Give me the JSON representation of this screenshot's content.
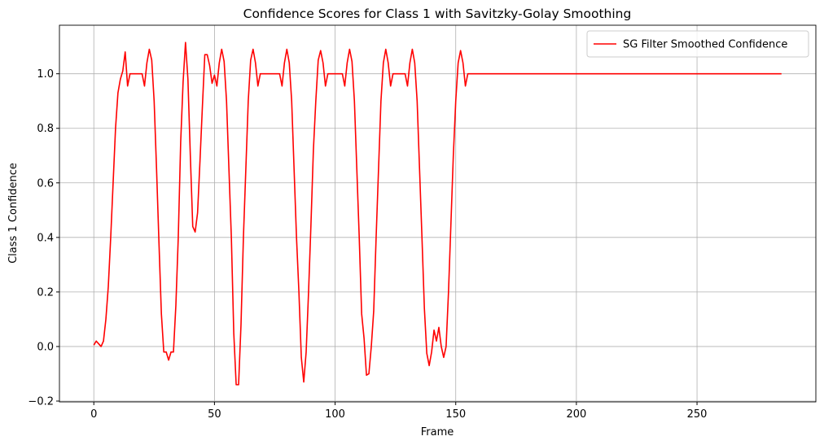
{
  "chart_data": {
    "type": "line",
    "title": "Confidence Scores for Class 1 with Savitzky-Golay Smoothing",
    "xlabel": "Frame",
    "ylabel": "Class 1 Confidence",
    "x": [
      0,
      1,
      2,
      3,
      4,
      5,
      6,
      7,
      8,
      9,
      10,
      11,
      12,
      13,
      14,
      15,
      16,
      17,
      18,
      19,
      20,
      21,
      22,
      23,
      24,
      25,
      26,
      27,
      28,
      29,
      30,
      31,
      32,
      33,
      34,
      35,
      36,
      37,
      38,
      39,
      40,
      41,
      42,
      43,
      44,
      45,
      46,
      47,
      48,
      49,
      50,
      51,
      52,
      53,
      54,
      55,
      56,
      57,
      58,
      59,
      60,
      61,
      62,
      63,
      64,
      65,
      66,
      67,
      68,
      69,
      70,
      71,
      72,
      73,
      74,
      75,
      76,
      77,
      78,
      79,
      80,
      81,
      82,
      83,
      84,
      85,
      86,
      87,
      88,
      89,
      90,
      91,
      92,
      93,
      94,
      95,
      96,
      97,
      98,
      99,
      100,
      101,
      102,
      103,
      104,
      105,
      106,
      107,
      108,
      109,
      110,
      111,
      112,
      113,
      114,
      115,
      116,
      117,
      118,
      119,
      120,
      121,
      122,
      123,
      124,
      125,
      126,
      127,
      128,
      129,
      130,
      131,
      132,
      133,
      134,
      135,
      136,
      137,
      138,
      139,
      140,
      141,
      142,
      143,
      144,
      145,
      146,
      147,
      148,
      149,
      150,
      151,
      152,
      153,
      154,
      155,
      156,
      285
    ],
    "series": [
      {
        "name": "SG Filter Smoothed Confidence",
        "color": "#ff0000",
        "values": [
          0.005,
          0.02,
          0.01,
          0.0,
          0.02,
          0.1,
          0.22,
          0.4,
          0.6,
          0.8,
          0.93,
          0.98,
          1.01,
          1.08,
          0.955,
          1.0,
          1.0,
          1.0,
          1.0,
          1.0,
          1.0,
          0.955,
          1.04,
          1.09,
          1.05,
          0.9,
          0.65,
          0.38,
          0.12,
          -0.02,
          -0.02,
          -0.05,
          -0.02,
          -0.02,
          0.15,
          0.4,
          0.75,
          0.97,
          1.115,
          0.98,
          0.7,
          0.44,
          0.42,
          0.49,
          0.68,
          0.88,
          1.07,
          1.07,
          1.03,
          0.965,
          0.995,
          0.955,
          1.04,
          1.09,
          1.045,
          0.9,
          0.65,
          0.4,
          0.05,
          -0.14,
          -0.14,
          0.08,
          0.4,
          0.65,
          0.9,
          1.05,
          1.09,
          1.04,
          0.955,
          1.0,
          1.0,
          1.0,
          1.0,
          1.0,
          1.0,
          1.0,
          1.0,
          1.0,
          0.955,
          1.04,
          1.09,
          1.04,
          0.9,
          0.65,
          0.4,
          0.2,
          -0.04,
          -0.13,
          -0.02,
          0.2,
          0.45,
          0.72,
          0.9,
          1.05,
          1.085,
          1.04,
          0.955,
          1.0,
          1.0,
          1.0,
          1.0,
          1.0,
          1.0,
          1.0,
          0.955,
          1.04,
          1.09,
          1.045,
          0.9,
          0.65,
          0.4,
          0.12,
          0.03,
          -0.105,
          -0.1,
          0.0,
          0.13,
          0.4,
          0.65,
          0.9,
          1.04,
          1.09,
          1.04,
          0.955,
          1.0,
          1.0,
          1.0,
          1.0,
          1.0,
          1.0,
          0.955,
          1.04,
          1.09,
          1.04,
          0.9,
          0.65,
          0.4,
          0.14,
          -0.025,
          -0.07,
          -0.02,
          0.06,
          0.02,
          0.07,
          0.0,
          -0.04,
          0.0,
          0.2,
          0.45,
          0.7,
          0.9,
          1.04,
          1.085,
          1.04,
          0.955,
          1.0,
          1.0,
          1.0
        ]
      }
    ],
    "xlim": [
      -14.25,
      299.25
    ],
    "xticks": [
      0,
      50,
      100,
      150,
      200,
      250
    ],
    "ylim": [
      -0.203,
      1.178
    ],
    "yticks": [
      {
        "value": -0.2,
        "label": "−0.2"
      },
      {
        "value": 0,
        "label": "0.0"
      },
      {
        "value": 0.2,
        "label": "0.2"
      },
      {
        "value": 0.4,
        "label": "0.4"
      },
      {
        "value": 0.6,
        "label": "0.6"
      },
      {
        "value": 0.8,
        "label": "0.8"
      },
      {
        "value": 1,
        "label": "1.0"
      }
    ],
    "grid": true,
    "legend": "upper right"
  }
}
